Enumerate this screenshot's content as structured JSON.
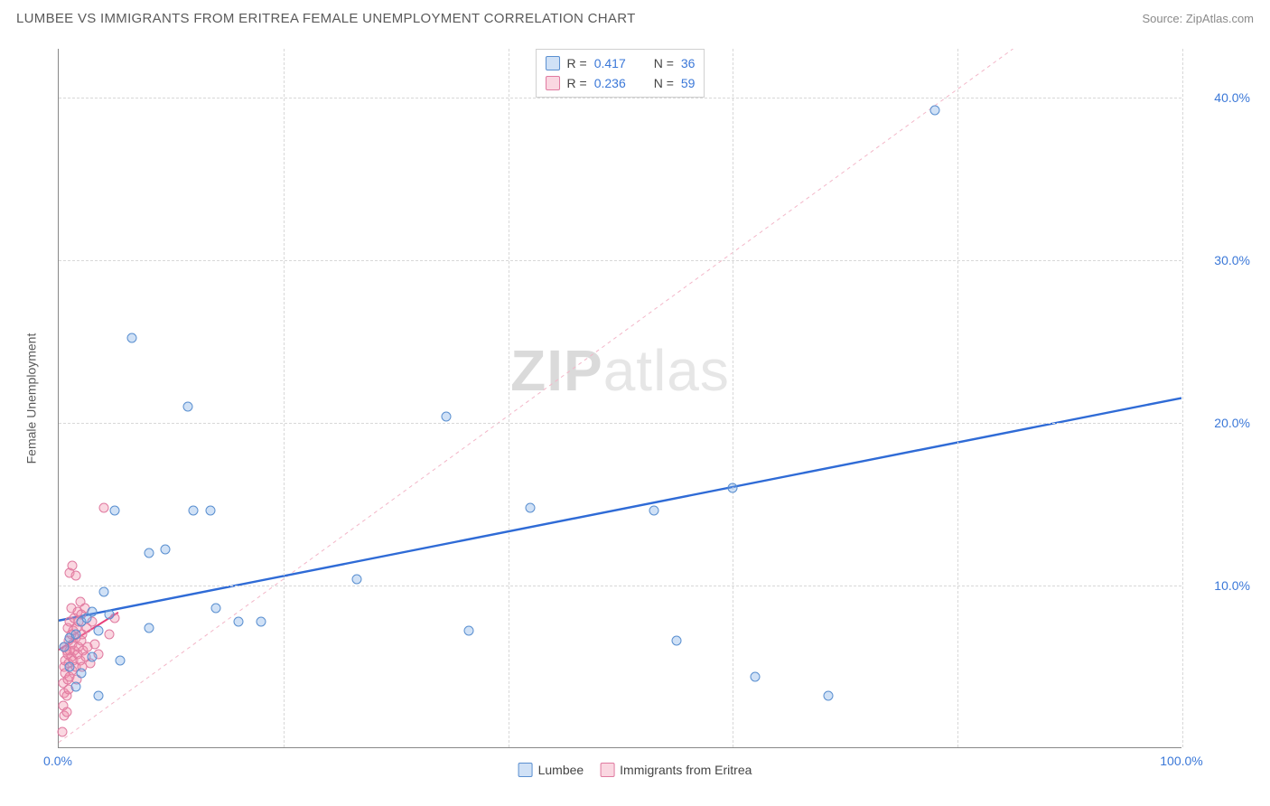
{
  "header": {
    "title": "LUMBEE VS IMMIGRANTS FROM ERITREA FEMALE UNEMPLOYMENT CORRELATION CHART",
    "source": "Source: ZipAtlas.com"
  },
  "chart": {
    "type": "scatter",
    "ylabel": "Female Unemployment",
    "xlim": [
      0,
      100
    ],
    "ylim": [
      0,
      43
    ],
    "yticks": [
      10,
      20,
      30,
      40
    ],
    "ytick_labels": [
      "10.0%",
      "20.0%",
      "30.0%",
      "40.0%"
    ],
    "xticks_start": "0.0%",
    "xticks_end": "100.0%",
    "x_gridlines": [
      20,
      40,
      60,
      80,
      100
    ],
    "grid_color": "#d8d8d8",
    "axis_color": "#888888",
    "background_color": "#ffffff",
    "watermark_text_a": "ZIP",
    "watermark_text_b": "atlas",
    "series": [
      {
        "key": "lumbee",
        "label": "Lumbee",
        "marker_fill": "rgba(120,170,230,0.35)",
        "marker_stroke": "#5a8fd0",
        "marker_radius": 5.5,
        "r": "0.417",
        "n": "36",
        "regression": {
          "x1": 0,
          "y1": 7.8,
          "x2": 100,
          "y2": 21.5,
          "color": "#2f6bd6",
          "width": 2.4,
          "dash": "none"
        },
        "points": [
          [
            0.5,
            6.2
          ],
          [
            1.0,
            5.0
          ],
          [
            1.0,
            6.8
          ],
          [
            1.5,
            3.8
          ],
          [
            1.5,
            7.0
          ],
          [
            2.0,
            4.6
          ],
          [
            2.0,
            7.8
          ],
          [
            2.5,
            8.0
          ],
          [
            3.0,
            5.6
          ],
          [
            3.0,
            8.4
          ],
          [
            3.5,
            7.2
          ],
          [
            3.5,
            3.2
          ],
          [
            4.0,
            9.6
          ],
          [
            4.5,
            8.2
          ],
          [
            5.0,
            14.6
          ],
          [
            5.5,
            5.4
          ],
          [
            6.5,
            25.2
          ],
          [
            8.0,
            12.0
          ],
          [
            8.0,
            7.4
          ],
          [
            9.5,
            12.2
          ],
          [
            11.5,
            21.0
          ],
          [
            12.0,
            14.6
          ],
          [
            13.5,
            14.6
          ],
          [
            14.0,
            8.6
          ],
          [
            16.0,
            7.8
          ],
          [
            18.0,
            7.8
          ],
          [
            26.5,
            10.4
          ],
          [
            34.5,
            20.4
          ],
          [
            36.5,
            7.2
          ],
          [
            42.0,
            14.8
          ],
          [
            53.0,
            14.6
          ],
          [
            55.0,
            6.6
          ],
          [
            60.0,
            16.0
          ],
          [
            62.0,
            4.4
          ],
          [
            68.5,
            3.2
          ],
          [
            78.0,
            39.2
          ]
        ]
      },
      {
        "key": "eritrea",
        "label": "Immigrants from Eritrea",
        "marker_fill": "rgba(240,140,170,0.35)",
        "marker_stroke": "#e07aa0",
        "marker_radius": 5.5,
        "r": "0.236",
        "n": "59",
        "regression": {
          "x1": 0,
          "y1": 6.0,
          "x2": 5.3,
          "y2": 8.3,
          "color": "#e83f7a",
          "width": 2.0,
          "dash": "none"
        },
        "diagonal": {
          "x1": 0,
          "y1": 0.3,
          "x2": 85,
          "y2": 43,
          "color": "#f3b6c8",
          "width": 1.0,
          "dash": "4,4"
        },
        "points": [
          [
            0.3,
            1.0
          ],
          [
            0.4,
            2.6
          ],
          [
            0.4,
            4.0
          ],
          [
            0.5,
            2.0
          ],
          [
            0.5,
            3.4
          ],
          [
            0.5,
            5.0
          ],
          [
            0.5,
            6.2
          ],
          [
            0.6,
            4.6
          ],
          [
            0.6,
            5.4
          ],
          [
            0.7,
            2.2
          ],
          [
            0.7,
            3.2
          ],
          [
            0.7,
            6.0
          ],
          [
            0.8,
            4.2
          ],
          [
            0.8,
            5.8
          ],
          [
            0.8,
            7.4
          ],
          [
            0.9,
            3.6
          ],
          [
            0.9,
            5.2
          ],
          [
            0.9,
            6.6
          ],
          [
            1.0,
            4.4
          ],
          [
            1.0,
            6.0
          ],
          [
            1.0,
            7.8
          ],
          [
            1.0,
            10.8
          ],
          [
            1.1,
            5.6
          ],
          [
            1.1,
            7.0
          ],
          [
            1.1,
            8.6
          ],
          [
            1.2,
            4.8
          ],
          [
            1.2,
            6.4
          ],
          [
            1.2,
            11.2
          ],
          [
            1.3,
            5.4
          ],
          [
            1.3,
            7.2
          ],
          [
            1.4,
            6.0
          ],
          [
            1.4,
            8.0
          ],
          [
            1.5,
            5.0
          ],
          [
            1.5,
            6.8
          ],
          [
            1.5,
            10.6
          ],
          [
            1.6,
            4.2
          ],
          [
            1.6,
            7.4
          ],
          [
            1.7,
            5.8
          ],
          [
            1.7,
            8.4
          ],
          [
            1.8,
            6.2
          ],
          [
            1.8,
            7.8
          ],
          [
            1.9,
            5.4
          ],
          [
            1.9,
            9.0
          ],
          [
            2.0,
            6.6
          ],
          [
            2.0,
            8.2
          ],
          [
            2.1,
            5.0
          ],
          [
            2.1,
            7.0
          ],
          [
            2.2,
            6.0
          ],
          [
            2.3,
            8.6
          ],
          [
            2.4,
            5.6
          ],
          [
            2.5,
            7.4
          ],
          [
            2.6,
            6.2
          ],
          [
            2.8,
            5.2
          ],
          [
            3.0,
            7.8
          ],
          [
            3.2,
            6.4
          ],
          [
            3.5,
            5.8
          ],
          [
            4.0,
            14.8
          ],
          [
            4.5,
            7.0
          ],
          [
            5.0,
            8.0
          ]
        ]
      }
    ],
    "legend_top_r_label": "R  =",
    "legend_top_n_label": "N  =",
    "legend_bottom": [
      {
        "key": "lumbee",
        "label": "Lumbee"
      },
      {
        "key": "eritrea",
        "label": "Immigrants from Eritrea"
      }
    ]
  }
}
